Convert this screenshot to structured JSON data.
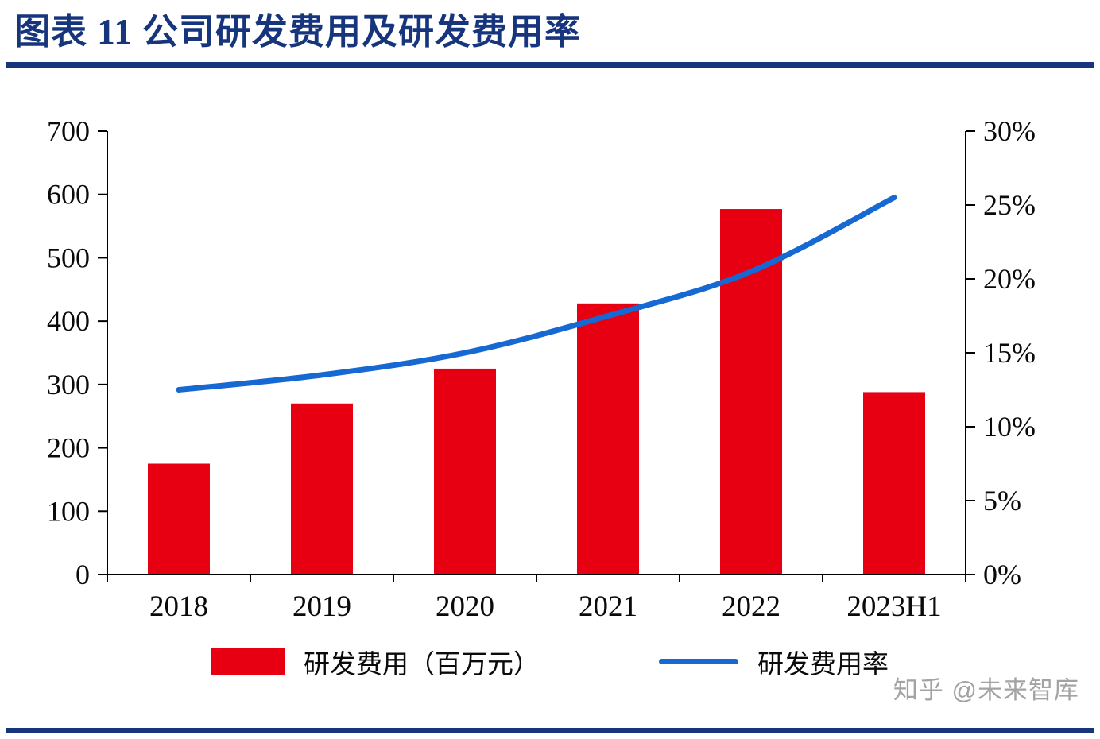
{
  "page": {
    "title": "图表 11   公司研发费用及研发费用率",
    "accent_color": "#17357d",
    "watermark": "知乎 @未来智库"
  },
  "chart_data": {
    "type": "bar",
    "subtype": "bar+line combo, dual axis",
    "title": "公司研发费用及研发费用率",
    "categories": [
      "2018",
      "2019",
      "2020",
      "2021",
      "2022",
      "2023H1"
    ],
    "series": [
      {
        "name": "研发费用（百万元）",
        "type": "bar",
        "axis": "left",
        "color": "#e60012",
        "values": [
          175,
          270,
          325,
          428,
          577,
          288
        ]
      },
      {
        "name": "研发费用率",
        "type": "line",
        "axis": "right",
        "color": "#1668d2",
        "values": [
          12.5,
          13.5,
          15,
          17.5,
          20.5,
          25.5
        ]
      }
    ],
    "left_axis": {
      "min": 0,
      "max": 700,
      "step": 100,
      "tick_labels": [
        "0",
        "100",
        "200",
        "300",
        "400",
        "500",
        "600",
        "700"
      ]
    },
    "right_axis": {
      "min": 0,
      "max": 30,
      "step": 5,
      "unit": "%",
      "tick_labels": [
        "0%",
        "5%",
        "10%",
        "15%",
        "20%",
        "25%",
        "30%"
      ]
    },
    "grid": false,
    "legend_position": "bottom"
  }
}
